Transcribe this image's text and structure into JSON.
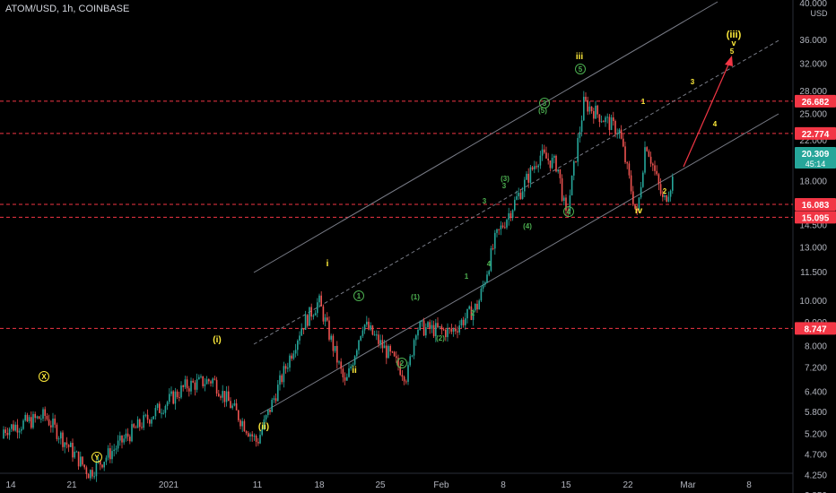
{
  "symbol_title": "ATOM/USD, 1h, COINBASE",
  "price_unit": "USD",
  "price_scale": {
    "type": "log",
    "ticks": [
      "40.000",
      "36.000",
      "32.000",
      "28.000",
      "25.000",
      "22.000",
      "18.000",
      "14.500",
      "13.000",
      "11.500",
      "10.000",
      "9.000",
      "8.000",
      "7.200",
      "6.400",
      "5.800",
      "5.200",
      "4.700",
      "4.250",
      "3.850"
    ],
    "tick_values": [
      40,
      36,
      32,
      28,
      25,
      22,
      18,
      14.5,
      13,
      11.5,
      10,
      9,
      8,
      7.2,
      6.4,
      5.8,
      5.2,
      4.7,
      4.25,
      3.85
    ]
  },
  "time_axis": {
    "labels": [
      "14",
      "21",
      "2021",
      "11",
      "18",
      "25",
      "Feb",
      "8",
      "15",
      "22",
      "Mar",
      "8"
    ]
  },
  "price_labels": [
    {
      "text": "26.682",
      "value": 26.682,
      "color": "#f23645"
    },
    {
      "text": "22.774",
      "value": 22.774,
      "color": "#f23645"
    },
    {
      "text": "16.083",
      "value": 16.083,
      "color": "#f23645"
    },
    {
      "text": "15.095",
      "value": 15.095,
      "color": "#f23645"
    },
    {
      "text": "8.747",
      "value": 8.747,
      "color": "#f23645"
    }
  ],
  "current_price": {
    "text": "20.309",
    "countdown": "45:14",
    "value": 20.309,
    "color": "#26a69a"
  },
  "wave_labels_yellow": [
    "(iii)",
    "v",
    "5",
    "iii",
    "i",
    "ii",
    "(i)",
    "(ii)",
    "iv",
    "1",
    "2",
    "3",
    "4"
  ],
  "wave_labels_green": [
    "1",
    "2",
    "3",
    "(5)",
    "(3)",
    "(4)",
    "(1)",
    "(2)",
    "3",
    "4",
    "5",
    "1",
    "2"
  ],
  "wave_labels_circled": [
    "X",
    "Y",
    "1",
    "2",
    "3",
    "4",
    "5"
  ],
  "colors": {
    "background": "#000000",
    "up_candle": "#26a69a",
    "down_candle": "#ef5350",
    "channel_line": "#787b86",
    "support_line": "#f23645",
    "wave_yellow": "#ffeb3b",
    "wave_green": "#4caf50",
    "projection_arrow": "#f23645"
  },
  "chart_data": {
    "type": "candlestick",
    "title": "ATOM/USD, 1h, COINBASE",
    "y_scale": "log",
    "ylim": [
      3.7,
      42
    ],
    "horizontal_levels": [
      26.682,
      22.774,
      16.083,
      15.095,
      8.747
    ],
    "price_path_approx": [
      {
        "x": "Dec 10",
        "y": 5.1
      },
      {
        "x": "Dec 17",
        "y": 5.6
      },
      {
        "x": "Dec 18",
        "y": 5.7
      },
      {
        "x": "Dec 23",
        "y": 4.3
      },
      {
        "x": "Dec 28",
        "y": 5.3
      },
      {
        "x": "Jan 3",
        "y": 6.6
      },
      {
        "x": "Jan 6",
        "y": 6.8
      },
      {
        "x": "Jan 11",
        "y": 5.0
      },
      {
        "x": "Jan 16",
        "y": 8.8
      },
      {
        "x": "Jan 18",
        "y": 10.0
      },
      {
        "x": "Jan 21",
        "y": 6.6
      },
      {
        "x": "Jan 23",
        "y": 9.0
      },
      {
        "x": "Jan 28",
        "y": 6.9
      },
      {
        "x": "Jan 29",
        "y": 8.8
      },
      {
        "x": "Feb 2",
        "y": 8.6
      },
      {
        "x": "Feb 5",
        "y": 9.8
      },
      {
        "x": "Feb 7",
        "y": 13.6
      },
      {
        "x": "Feb 12",
        "y": 20.5
      },
      {
        "x": "Feb 14",
        "y": 19.5
      },
      {
        "x": "Feb 15",
        "y": 15.0
      },
      {
        "x": "Feb 17",
        "y": 26.5
      },
      {
        "x": "Feb 21",
        "y": 23.0
      },
      {
        "x": "Feb 23",
        "y": 15.1
      },
      {
        "x": "Feb 24",
        "y": 22.0
      },
      {
        "x": "Feb 26",
        "y": 16.2
      },
      {
        "x": "Feb 28",
        "y": 20.3
      }
    ]
  }
}
